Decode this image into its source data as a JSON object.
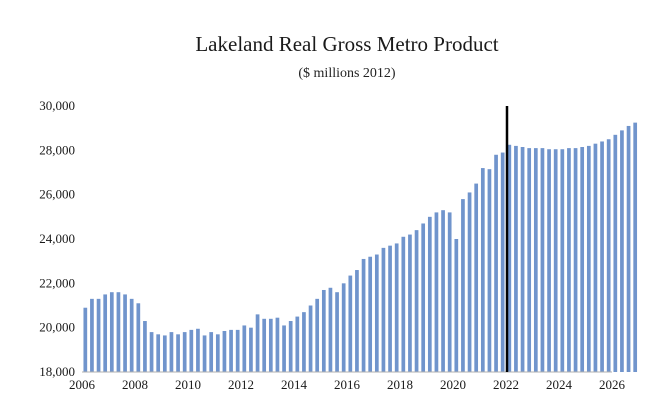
{
  "chart_data": {
    "type": "bar",
    "title": "Lakeland Real Gross Metro Product",
    "subtitle": "($ millions 2012)",
    "xlabel": "",
    "ylabel": "",
    "ylim": [
      18000,
      30000
    ],
    "y_ticks": [
      "18,000",
      "20,000",
      "22,000",
      "24,000",
      "26,000",
      "28,000",
      "30,000"
    ],
    "x_ticks": [
      "2006",
      "2008",
      "2010",
      "2012",
      "2014",
      "2016",
      "2018",
      "2020",
      "2022",
      "2024",
      "2026"
    ],
    "x_range": [
      2006,
      2026
    ],
    "frequency": "quarterly",
    "start_quarter": "2006Q1",
    "marker_line_year": 2022,
    "bar_color": "#7094cc",
    "marker_color": "#000000",
    "grid": false,
    "values": [
      20900,
      21300,
      21300,
      21500,
      21600,
      21600,
      21500,
      21300,
      21100,
      20300,
      19800,
      19700,
      19650,
      19800,
      19700,
      19800,
      19900,
      19950,
      19650,
      19800,
      19700,
      19850,
      19900,
      19900,
      20100,
      20000,
      20600,
      20400,
      20400,
      20450,
      20100,
      20300,
      20500,
      20700,
      21000,
      21300,
      21700,
      21800,
      21600,
      22000,
      22350,
      22600,
      23100,
      23200,
      23300,
      23600,
      23700,
      23800,
      24100,
      24200,
      24400,
      24700,
      25000,
      25200,
      25300,
      25200,
      24000,
      25800,
      26100,
      26500,
      27200,
      27150,
      27800,
      27900,
      28250,
      28200,
      28150,
      28100,
      28100,
      28100,
      28050,
      28050,
      28050,
      28100,
      28100,
      28150,
      28200,
      28300,
      28400,
      28500,
      28700,
      28900,
      29100,
      29250
    ]
  }
}
